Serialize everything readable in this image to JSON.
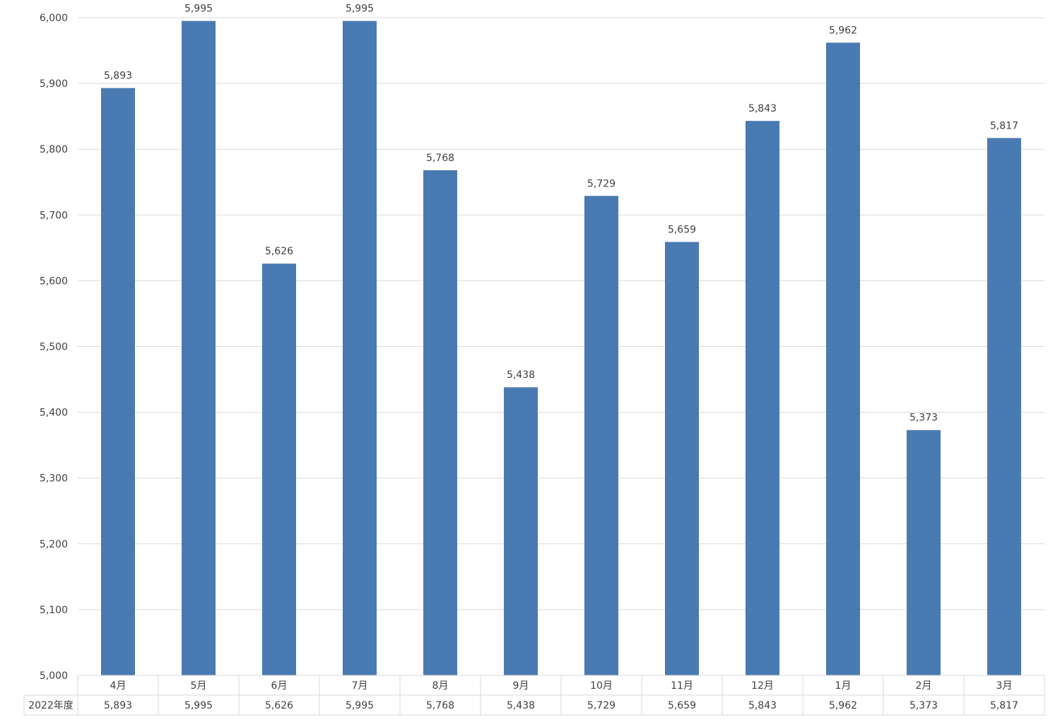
{
  "chart_data": {
    "type": "bar",
    "title": "",
    "xlabel": "",
    "ylabel": "",
    "ylim": [
      5000,
      6000
    ],
    "yticks": [
      "5,000",
      "5,100",
      "5,200",
      "5,300",
      "5,400",
      "5,500",
      "5,600",
      "5,700",
      "5,800",
      "5,900",
      "6,000"
    ],
    "grid": true,
    "categories": [
      "4月",
      "5月",
      "6月",
      "7月",
      "8月",
      "9月",
      "10月",
      "11月",
      "12月",
      "1月",
      "2月",
      "3月"
    ],
    "series": [
      {
        "name": "2022年度",
        "values": [
          5893,
          5995,
          5626,
          5995,
          5768,
          5438,
          5729,
          5659,
          5843,
          5962,
          5373,
          5817
        ],
        "labels": [
          "5,893",
          "5,995",
          "5,626",
          "5,995",
          "5,768",
          "5,438",
          "5,729",
          "5,659",
          "5,843",
          "5,962",
          "5,373",
          "5,817"
        ]
      }
    ],
    "data_table": true,
    "colors": {
      "bar": "#4a7ab2",
      "grid": "#d9d9d9",
      "text": "#404040"
    }
  }
}
